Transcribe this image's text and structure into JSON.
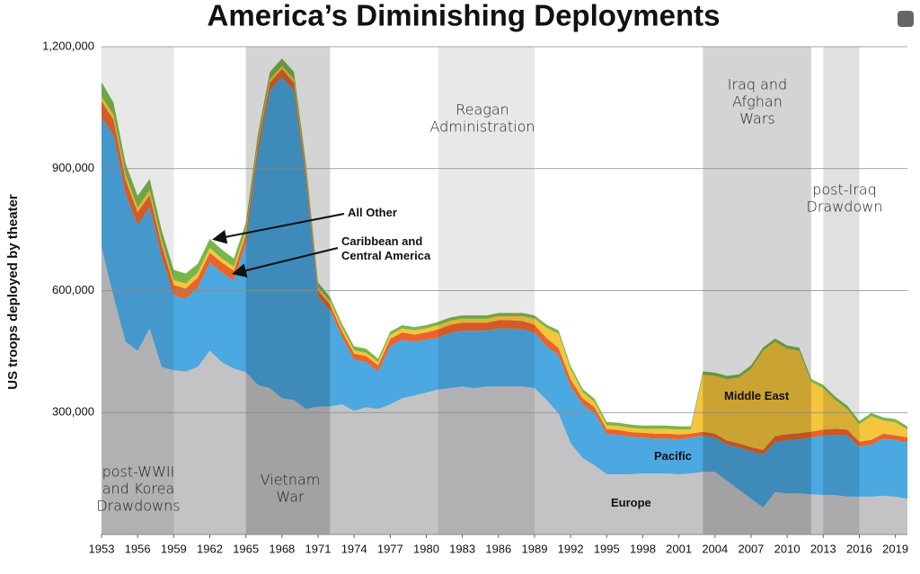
{
  "chart_data": {
    "type": "stacked_area",
    "title": "America’s Diminishing Deployments",
    "y_label": "US troops deployed by theater",
    "x": [
      1953,
      1954,
      1955,
      1956,
      1957,
      1958,
      1959,
      1960,
      1961,
      1962,
      1963,
      1964,
      1965,
      1966,
      1967,
      1968,
      1969,
      1970,
      1971,
      1972,
      1973,
      1974,
      1975,
      1976,
      1977,
      1978,
      1979,
      1980,
      1981,
      1982,
      1983,
      1984,
      1985,
      1986,
      1987,
      1988,
      1989,
      1990,
      1991,
      1992,
      1993,
      1994,
      1995,
      1996,
      1997,
      1998,
      1999,
      2000,
      2001,
      2002,
      2003,
      2004,
      2005,
      2006,
      2007,
      2008,
      2009,
      2010,
      2011,
      2012,
      2013,
      2014,
      2015,
      2016,
      2017,
      2018,
      2019,
      2020
    ],
    "xlim": [
      1953,
      2020
    ],
    "xticks": [
      1953,
      1956,
      1959,
      1962,
      1965,
      1968,
      1971,
      1974,
      1977,
      1980,
      1983,
      1986,
      1989,
      1992,
      1995,
      1998,
      2001,
      2004,
      2007,
      2010,
      2013,
      2016,
      2019
    ],
    "ylim": [
      0,
      1200000
    ],
    "yticks": [
      {
        "value": 300000,
        "label": "300,000"
      },
      {
        "value": 600000,
        "label": "600,000"
      },
      {
        "value": 900000,
        "label": "900,000"
      },
      {
        "value": 1200000,
        "label": "1,200,000"
      }
    ],
    "grid": true,
    "series": [
      {
        "name": "Europe",
        "color": "#c3c3c5",
        "values": [
          706000,
          585000,
          474000,
          452000,
          507000,
          412000,
          404000,
          401000,
          412000,
          452000,
          424000,
          408000,
          399000,
          368000,
          360000,
          335000,
          331000,
          309000,
          315000,
          315000,
          320000,
          304000,
          313000,
          309000,
          320000,
          335000,
          342000,
          349000,
          357000,
          360000,
          364000,
          360000,
          364000,
          364000,
          364000,
          364000,
          360000,
          331000,
          298000,
          225000,
          188000,
          170000,
          148000,
          148000,
          148000,
          150000,
          150000,
          150000,
          148000,
          150000,
          154000,
          154000,
          132000,
          110000,
          88000,
          66000,
          104000,
          101000,
          101000,
          99000,
          97000,
          97000,
          93000,
          93000,
          93000,
          95000,
          93000,
          88000
        ]
      },
      {
        "name": "Pacific",
        "color": "#4ba8e0",
        "values": [
          320000,
          397000,
          364000,
          309000,
          298000,
          272000,
          185000,
          179000,
          195000,
          216000,
          220000,
          216000,
          318000,
          570000,
          732000,
          790000,
          761000,
          562000,
          270000,
          236000,
          165000,
          126000,
          111000,
          92000,
          143000,
          144000,
          132000,
          130000,
          128000,
          136000,
          137000,
          141000,
          137000,
          143000,
          143000,
          141000,
          136000,
          132000,
          143000,
          139000,
          132000,
          128000,
          99000,
          97000,
          92000,
          88000,
          86000,
          86000,
          86000,
          88000,
          89000,
          84000,
          89000,
          104000,
          117000,
          130000,
          123000,
          131000,
          133000,
          139000,
          146000,
          148000,
          150000,
          123000,
          128000,
          141000,
          139000,
          139000
        ]
      },
      {
        "name": "Caribbean and Central America",
        "color": "#e8642b",
        "values": [
          40000,
          38000,
          35000,
          32000,
          30000,
          28000,
          25000,
          25000,
          25000,
          25000,
          25000,
          25000,
          22000,
          20000,
          20000,
          20000,
          20000,
          18000,
          15000,
          15000,
          15000,
          15000,
          15000,
          15000,
          18000,
          18000,
          18000,
          18000,
          20000,
          20000,
          20000,
          20000,
          20000,
          20000,
          20000,
          20000,
          20000,
          20000,
          18000,
          18000,
          15000,
          15000,
          12000,
          12000,
          12000,
          12000,
          12000,
          12000,
          12000,
          10000,
          10000,
          10000,
          10000,
          10000,
          10000,
          12000,
          15000,
          15000,
          15000,
          15000,
          15000,
          15000,
          15000,
          12000,
          12000,
          12000,
          12000,
          12000
        ]
      },
      {
        "name": "Middle East",
        "color": "#f4c53d",
        "values": [
          12000,
          12000,
          12000,
          12000,
          12000,
          12000,
          12000,
          12000,
          12000,
          12000,
          10000,
          10000,
          8000,
          8000,
          8000,
          8000,
          8000,
          8000,
          8000,
          8000,
          8000,
          8000,
          8000,
          8000,
          10000,
          10000,
          10000,
          10000,
          10000,
          10000,
          10000,
          10000,
          10000,
          10000,
          10000,
          12000,
          15000,
          25000,
          35000,
          25000,
          15000,
          12000,
          10000,
          10000,
          10000,
          10000,
          12000,
          12000,
          12000,
          10000,
          140000,
          142000,
          151000,
          162000,
          193000,
          244000,
          232000,
          210000,
          203000,
          122000,
          102000,
          71000,
          51000,
          43000,
          58000,
          32000,
          32000,
          19000
        ]
      },
      {
        "name": "All Other",
        "color": "#79b64a",
        "values": [
          35000,
          30000,
          28000,
          28000,
          28000,
          25000,
          25000,
          25000,
          22000,
          22000,
          22000,
          20000,
          20000,
          18000,
          18000,
          18000,
          18000,
          15000,
          12000,
          10000,
          10000,
          10000,
          10000,
          8000,
          8000,
          8000,
          8000,
          8000,
          8000,
          8000,
          8000,
          8000,
          8000,
          8000,
          8000,
          8000,
          8000,
          8000,
          8000,
          8000,
          8000,
          8000,
          8000,
          8000,
          8000,
          8000,
          8000,
          8000,
          8000,
          8000,
          8000,
          8000,
          8000,
          8000,
          8000,
          8000,
          8000,
          8000,
          8000,
          8000,
          8000,
          8000,
          8000,
          8000,
          8000,
          8000,
          8000,
          8000
        ]
      }
    ],
    "eras": [
      {
        "lines": [
          "post-WWII",
          "and Korea",
          "Drawdowns"
        ],
        "start": 1953,
        "end": 1959,
        "color": "rgba(0,0,0,0.09)"
      },
      {
        "lines": [
          "Vietnam",
          "War"
        ],
        "start": 1965,
        "end": 1972,
        "color": "rgba(0,0,0,0.17)"
      },
      {
        "lines": [
          "Reagan",
          "Administration"
        ],
        "start": 1981,
        "end": 1989,
        "color": "rgba(0,0,0,0.09)"
      },
      {
        "lines": [
          "Iraq and",
          "Afghan",
          "Wars"
        ],
        "start": 2003,
        "end": 2012,
        "color": "rgba(0,0,0,0.17)"
      },
      {
        "lines": [
          "post-Iraq",
          "Drawdown"
        ],
        "start": 2013,
        "end": 2016,
        "color": "rgba(0,0,0,0.12)"
      }
    ]
  }
}
